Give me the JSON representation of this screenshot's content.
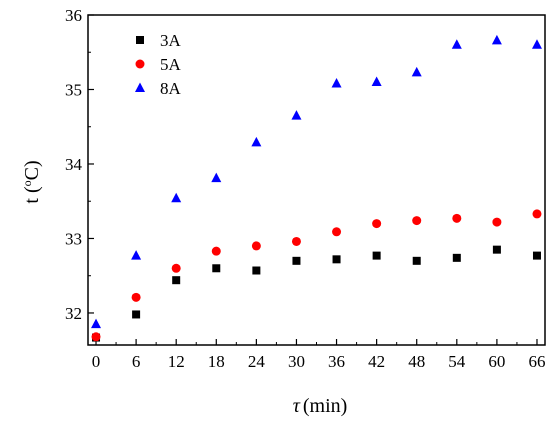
{
  "chart_data": {
    "type": "scatter",
    "x": [
      0,
      6,
      12,
      18,
      24,
      30,
      36,
      42,
      48,
      54,
      60,
      66
    ],
    "series": [
      {
        "name": "3A",
        "marker": "square",
        "color": "#000000",
        "values": [
          31.67,
          31.98,
          32.44,
          32.6,
          32.57,
          32.7,
          32.72,
          32.77,
          32.7,
          32.74,
          32.85,
          32.77
        ]
      },
      {
        "name": "5A",
        "marker": "circle",
        "color": "#ff0000",
        "values": [
          31.68,
          32.21,
          32.6,
          32.83,
          32.9,
          32.96,
          33.09,
          33.2,
          33.24,
          33.27,
          33.22,
          33.33
        ]
      },
      {
        "name": "8A",
        "marker": "triangle",
        "color": "#0000ff",
        "values": [
          31.85,
          32.77,
          33.54,
          33.81,
          34.29,
          34.65,
          35.08,
          35.1,
          35.23,
          35.6,
          35.66,
          35.6
        ]
      }
    ],
    "xlim": [
      -1.2,
      67.2
    ],
    "ylim": [
      31.57,
      36
    ],
    "xticks": [
      0,
      6,
      12,
      18,
      24,
      30,
      36,
      42,
      48,
      54,
      60,
      66
    ],
    "yticks": [
      32,
      33,
      34,
      35,
      36
    ],
    "xticklabels": [
      "0",
      "6",
      "12",
      "18",
      "24",
      "30",
      "36",
      "42",
      "48",
      "54",
      "60",
      "66"
    ],
    "yticklabels": [
      "32",
      "33",
      "34",
      "35",
      "36"
    ],
    "xlabel_symbol": "τ",
    "xlabel_unit": "(min)",
    "ylabel_prefix": "t (",
    "ylabel_sup": "o",
    "ylabel_suffix": "C)",
    "legend": "top-left",
    "grid": false
  }
}
